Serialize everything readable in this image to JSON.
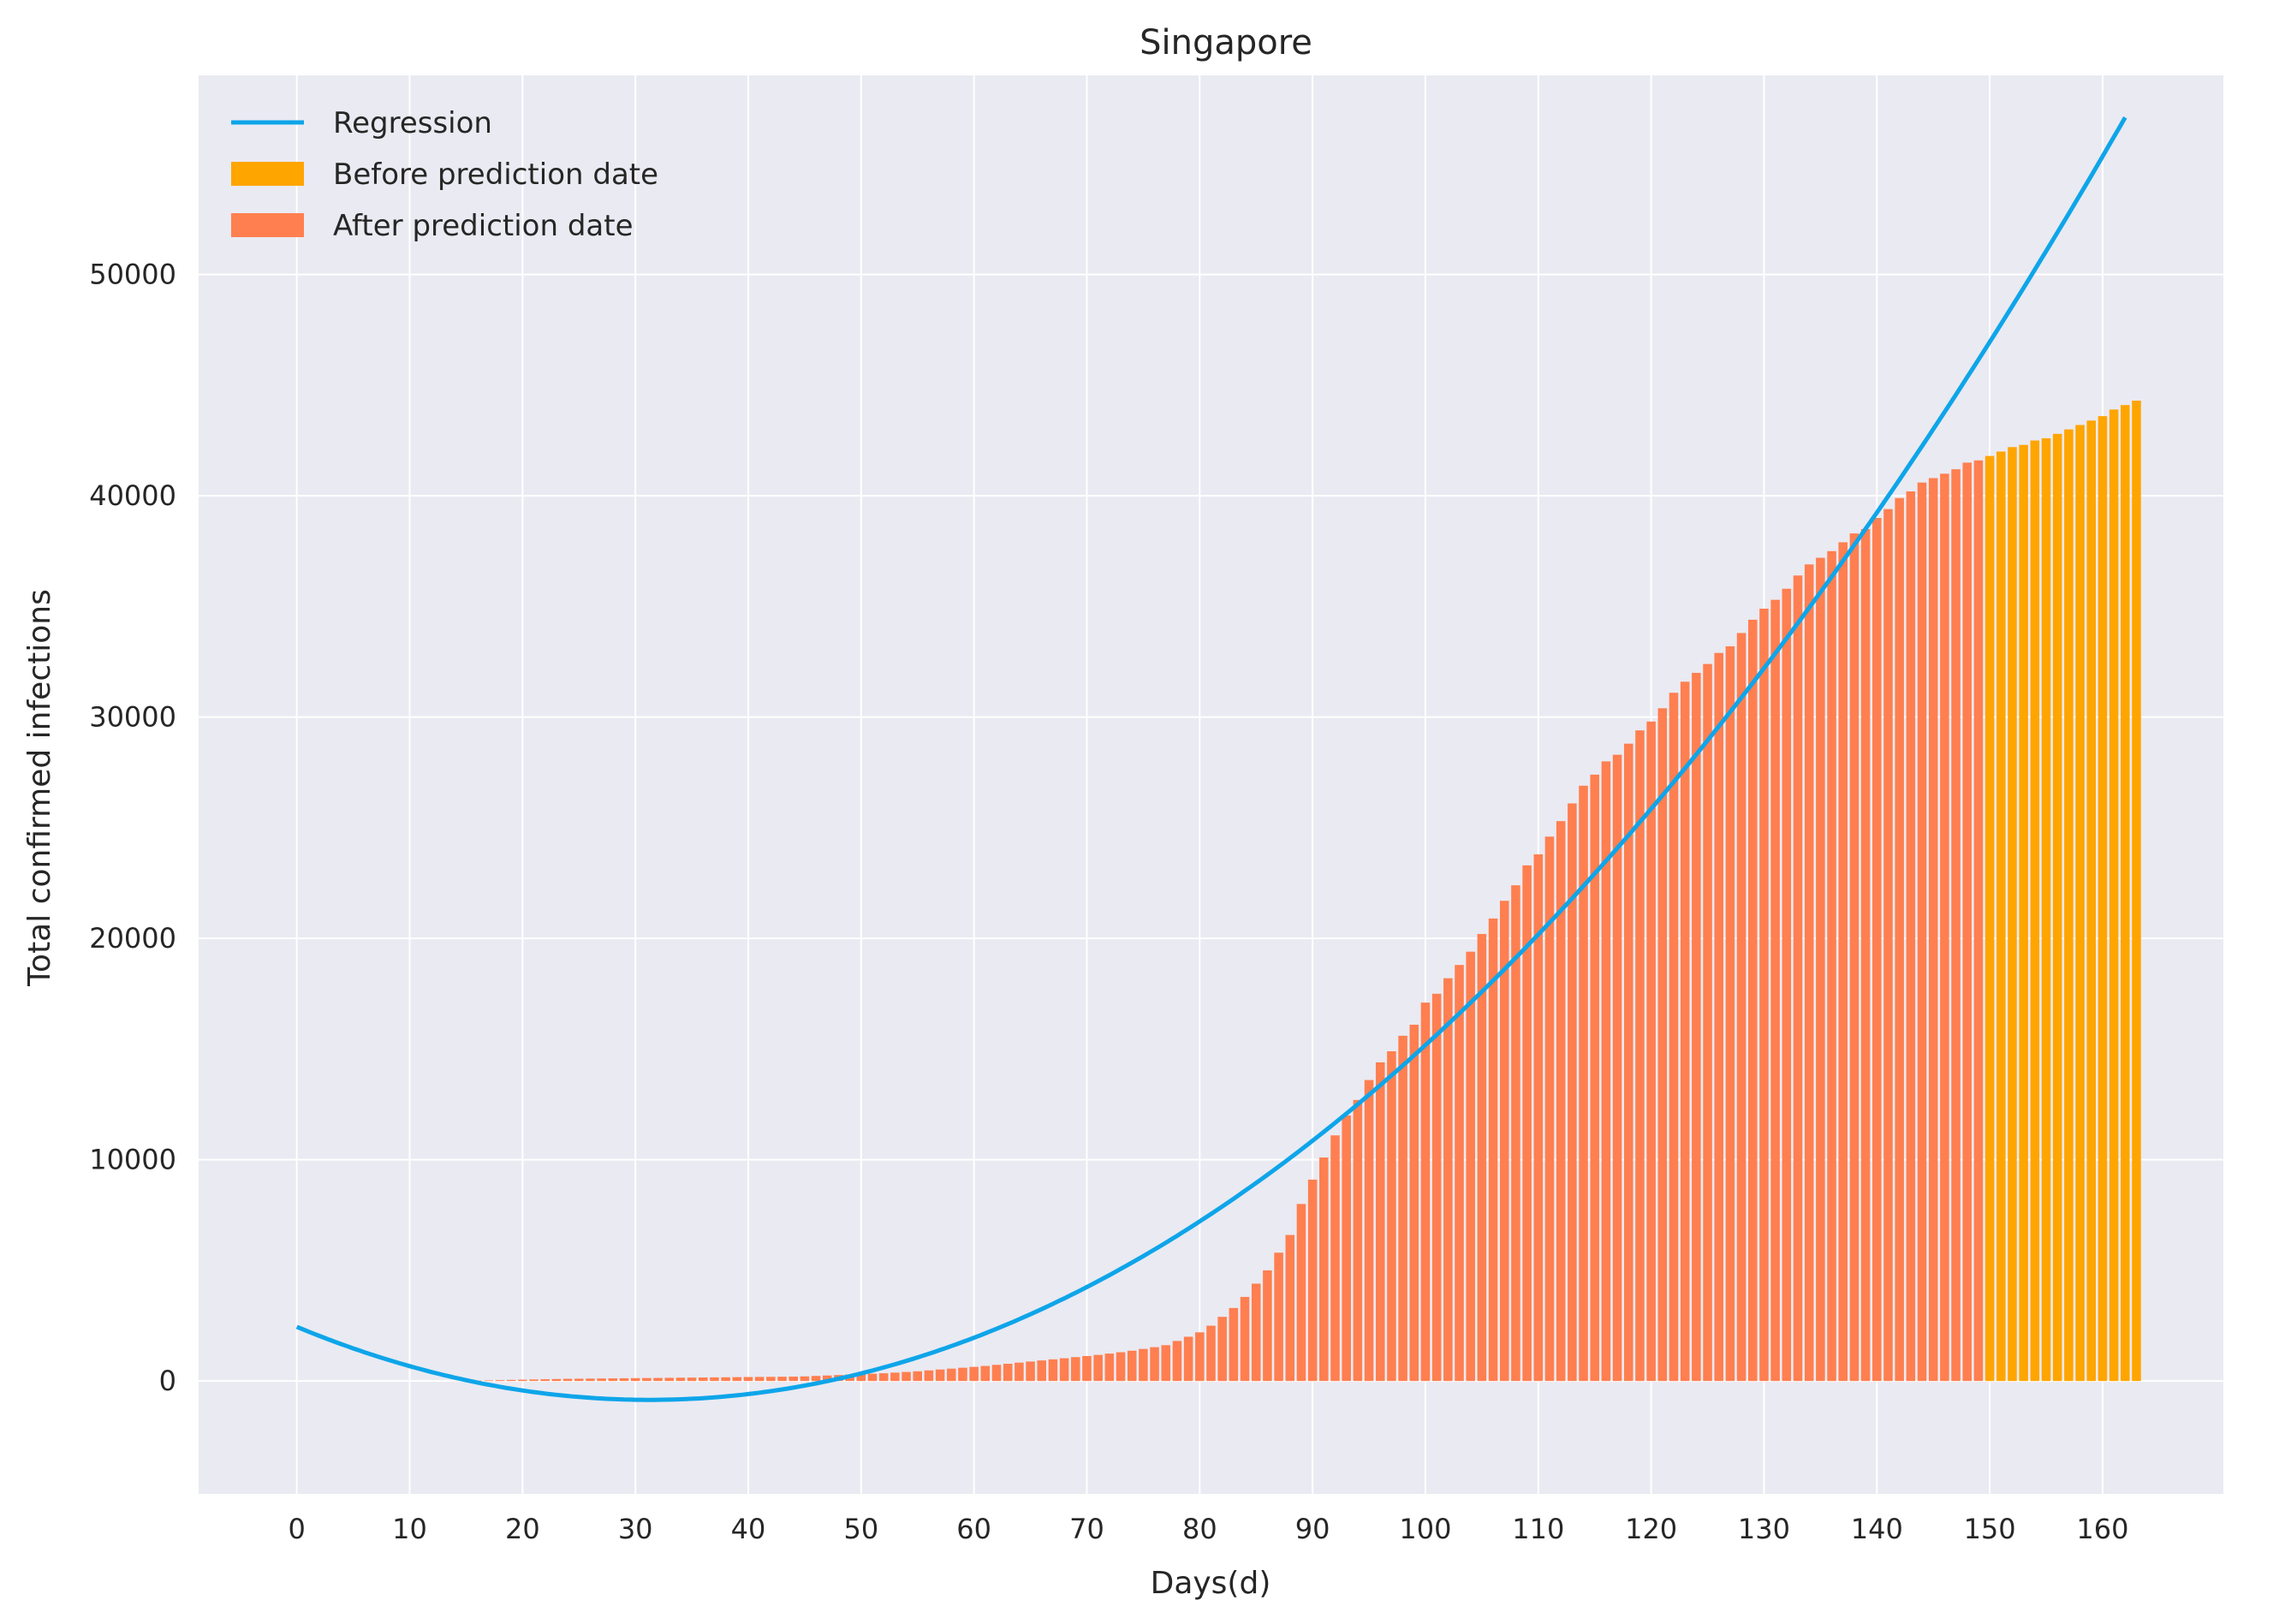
{
  "chart_data": {
    "type": "bar",
    "title": "Singapore",
    "xlabel": "Days(d)",
    "ylabel": "Total confirmed infections",
    "xlim": [
      -8.7,
      170.7
    ],
    "ylim": [
      -5100,
      59000
    ],
    "x_ticks": [
      0,
      10,
      20,
      30,
      40,
      50,
      60,
      70,
      80,
      90,
      100,
      110,
      120,
      130,
      140,
      150,
      160
    ],
    "y_ticks": [
      0,
      10000,
      20000,
      30000,
      40000,
      50000
    ],
    "grid": true,
    "legend": {
      "position": "top-left",
      "entries": [
        "Regression",
        "Before prediction date",
        "After prediction date"
      ]
    },
    "colors": {
      "regression": "#0ea5e9",
      "before": "#ffa500",
      "after": "#ff7f50",
      "background": "#eaeaf2",
      "grid": "#ffffff"
    },
    "regression": {
      "name": "Regression",
      "model": "quadratic",
      "x_range": [
        0,
        162
      ],
      "points": [
        [
          0,
          3600
        ],
        [
          34,
          -2200
        ],
        [
          56,
          0
        ],
        [
          90,
          11500
        ],
        [
          120,
          27200
        ],
        [
          140,
          40000
        ],
        [
          162,
          55800
        ]
      ]
    },
    "series": [
      {
        "name": "After prediction date",
        "x_start": 0,
        "values": [
          0,
          0,
          0,
          0,
          0,
          0,
          0,
          0,
          0,
          0,
          0,
          0,
          0,
          0,
          5,
          10,
          20,
          30,
          40,
          50,
          60,
          70,
          80,
          90,
          100,
          105,
          110,
          115,
          120,
          125,
          130,
          135,
          140,
          145,
          150,
          155,
          160,
          165,
          170,
          175,
          180,
          185,
          190,
          195,
          200,
          210,
          230,
          250,
          270,
          290,
          310,
          330,
          350,
          380,
          410,
          440,
          480,
          520,
          560,
          600,
          640,
          680,
          730,
          780,
          830,
          880,
          930,
          980,
          1030,
          1080,
          1130,
          1180,
          1240,
          1300,
          1370,
          1450,
          1530,
          1620,
          1810,
          2000,
          2200,
          2500,
          2900,
          3300,
          3800,
          4400,
          5000,
          5800,
          6600,
          8000,
          9100,
          10100,
          11100,
          12000,
          12700,
          13600,
          14400,
          14900,
          15600,
          16100,
          17100,
          17500,
          18200,
          18800,
          19400,
          20200,
          20900,
          21700,
          22400,
          23300,
          23800,
          24600,
          25300,
          26100,
          26900,
          27400,
          28000,
          28300,
          28800,
          29400,
          29800,
          30400,
          31100,
          31600,
          32000,
          32400,
          32900,
          33200,
          33800,
          34400,
          34900,
          35300,
          35800,
          36400,
          36900,
          37200,
          37500,
          37900,
          38300,
          38500,
          39000,
          39400,
          39900,
          40200,
          40600,
          40800,
          41000,
          41200,
          41500,
          41600
        ],
        "color": "#ff7f50"
      },
      {
        "name": "Before prediction date",
        "x_start": 150,
        "values": [
          41800,
          42000,
          42200,
          42300,
          42500,
          42600,
          42800,
          43000,
          43200,
          43400,
          43600,
          43900,
          44100,
          44300
        ],
        "color": "#ffa500"
      }
    ]
  }
}
